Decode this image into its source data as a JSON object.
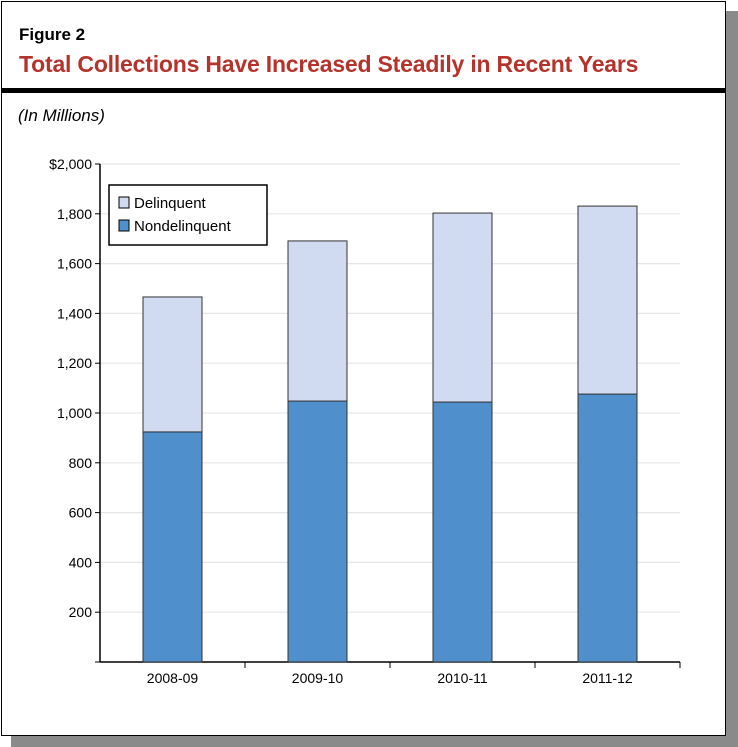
{
  "figure_label": "Figure 2",
  "title": "Total Collections Have Increased Steadily in Recent Years",
  "units": "(In Millions)",
  "chart_data": {
    "type": "bar",
    "stacked": true,
    "categories": [
      "2008-09",
      "2009-10",
      "2010-11",
      "2011-12"
    ],
    "series": [
      {
        "name": "Nondelinquent",
        "values": [
          924,
          1048,
          1044,
          1076
        ],
        "color": "#4f8fcb"
      },
      {
        "name": "Delinquent",
        "values": [
          542,
          643,
          759,
          755
        ],
        "color": "#d0daf0"
      }
    ],
    "yticks": [
      "",
      "200",
      "400",
      "600",
      "800",
      "1,000",
      "1,200",
      "1,400",
      "1,600",
      "1,800",
      "$2,000"
    ],
    "ylim": [
      0,
      2000
    ],
    "grid": true,
    "legend": "top-left",
    "legend_order": [
      "Delinquent",
      "Nondelinquent"
    ]
  }
}
